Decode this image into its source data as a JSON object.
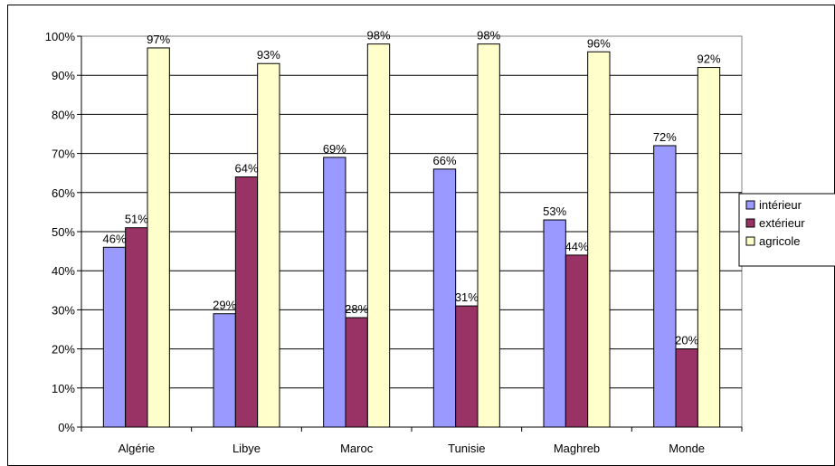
{
  "chart_data": {
    "type": "bar",
    "categories": [
      "Algérie",
      "Libye",
      "Maroc",
      "Tunisie",
      "Maghreb",
      "Monde"
    ],
    "series": [
      {
        "name": "intérieur",
        "color": "#9999FF",
        "values": [
          46,
          29,
          69,
          66,
          53,
          72
        ]
      },
      {
        "name": "extérieur",
        "color": "#993366",
        "values": [
          51,
          64,
          28,
          31,
          44,
          20
        ]
      },
      {
        "name": "agricole",
        "color": "#FFFFCC",
        "values": [
          97,
          93,
          98,
          98,
          96,
          92
        ]
      }
    ],
    "y_ticks": [
      "0%",
      "10%",
      "20%",
      "30%",
      "40%",
      "50%",
      "60%",
      "70%",
      "80%",
      "90%",
      "100%"
    ],
    "ylim": [
      0,
      100
    ],
    "data_label_suffix": "%",
    "grid": true,
    "legend_position": "right",
    "title": "",
    "xlabel": "",
    "ylabel": ""
  }
}
